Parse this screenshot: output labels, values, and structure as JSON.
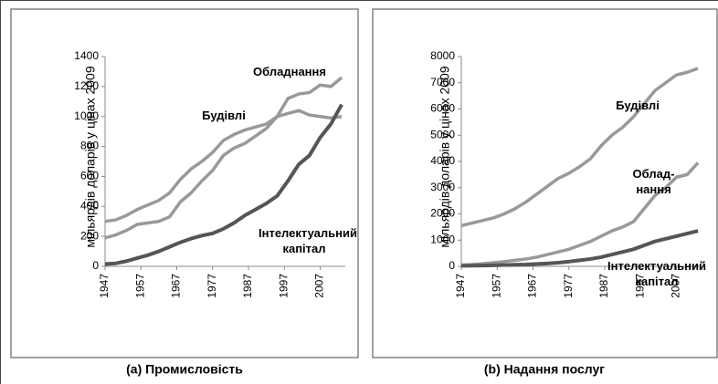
{
  "chart_data": [
    {
      "type": "line",
      "title": "(a) Промисловість",
      "y_label": "мільярдів доларів у цінах 2009",
      "x": [
        1947,
        1950,
        1953,
        1956,
        1959,
        1962,
        1965,
        1968,
        1971,
        1974,
        1977,
        1980,
        1983,
        1986,
        1989,
        1992,
        1995,
        1998,
        2001,
        2004,
        2007,
        2010,
        2013
      ],
      "xlim": [
        1947,
        2014
      ],
      "xticks": [
        1947,
        1957,
        1967,
        1977,
        1987,
        1997,
        2007
      ],
      "ylim": [
        0,
        1400
      ],
      "yticks": [
        0,
        200,
        400,
        600,
        800,
        1000,
        1200,
        1400
      ],
      "series": [
        {
          "name": "Обладнання",
          "color": "#999999",
          "values": [
            190,
            210,
            240,
            280,
            290,
            300,
            330,
            430,
            490,
            570,
            640,
            740,
            790,
            820,
            870,
            920,
            1000,
            1120,
            1150,
            1160,
            1210,
            1200,
            1260
          ]
        },
        {
          "name": "Будівлі",
          "color": "#999999",
          "values": [
            300,
            310,
            340,
            380,
            410,
            440,
            490,
            580,
            650,
            700,
            760,
            840,
            880,
            910,
            930,
            950,
            1000,
            1020,
            1040,
            1010,
            1000,
            990,
            1000
          ]
        },
        {
          "name": "Інтелектуальний капітал",
          "color": "#555555",
          "values": [
            15,
            20,
            35,
            55,
            75,
            100,
            130,
            160,
            185,
            205,
            220,
            250,
            290,
            340,
            380,
            420,
            470,
            570,
            680,
            740,
            860,
            950,
            1080
          ]
        }
      ]
    },
    {
      "type": "line",
      "title": "(b) Надання послуг",
      "y_label": "мільярдів доларів у цінах 2009",
      "x": [
        1947,
        1950,
        1953,
        1956,
        1959,
        1962,
        1965,
        1968,
        1971,
        1974,
        1977,
        1980,
        1983,
        1986,
        1989,
        1992,
        1995,
        1998,
        2001,
        2004,
        2007,
        2010,
        2013
      ],
      "xlim": [
        1947,
        2014
      ],
      "xticks": [
        1947,
        1957,
        1967,
        1977,
        1987,
        1997,
        2007
      ],
      "ylim": [
        0,
        8000
      ],
      "yticks": [
        0,
        1000,
        2000,
        3000,
        4000,
        5000,
        6000,
        7000,
        8000
      ],
      "series": [
        {
          "name": "Облад-нання",
          "color": "#999999",
          "values": [
            50,
            70,
            100,
            140,
            180,
            230,
            280,
            350,
            450,
            550,
            650,
            800,
            950,
            1150,
            1350,
            1500,
            1700,
            2200,
            2700,
            3000,
            3400,
            3500,
            3950
          ]
        },
        {
          "name": "Будівлі",
          "color": "#999999",
          "values": [
            1550,
            1650,
            1750,
            1850,
            2000,
            2200,
            2450,
            2750,
            3050,
            3350,
            3550,
            3800,
            4100,
            4600,
            5000,
            5300,
            5700,
            6200,
            6700,
            7000,
            7300,
            7400,
            7550
          ]
        },
        {
          "name": "Інтелектуальний капітал",
          "color": "#555555",
          "values": [
            20,
            25,
            30,
            40,
            50,
            60,
            70,
            90,
            110,
            140,
            180,
            230,
            280,
            350,
            450,
            550,
            650,
            800,
            950,
            1050,
            1150,
            1250,
            1350
          ]
        }
      ]
    }
  ]
}
